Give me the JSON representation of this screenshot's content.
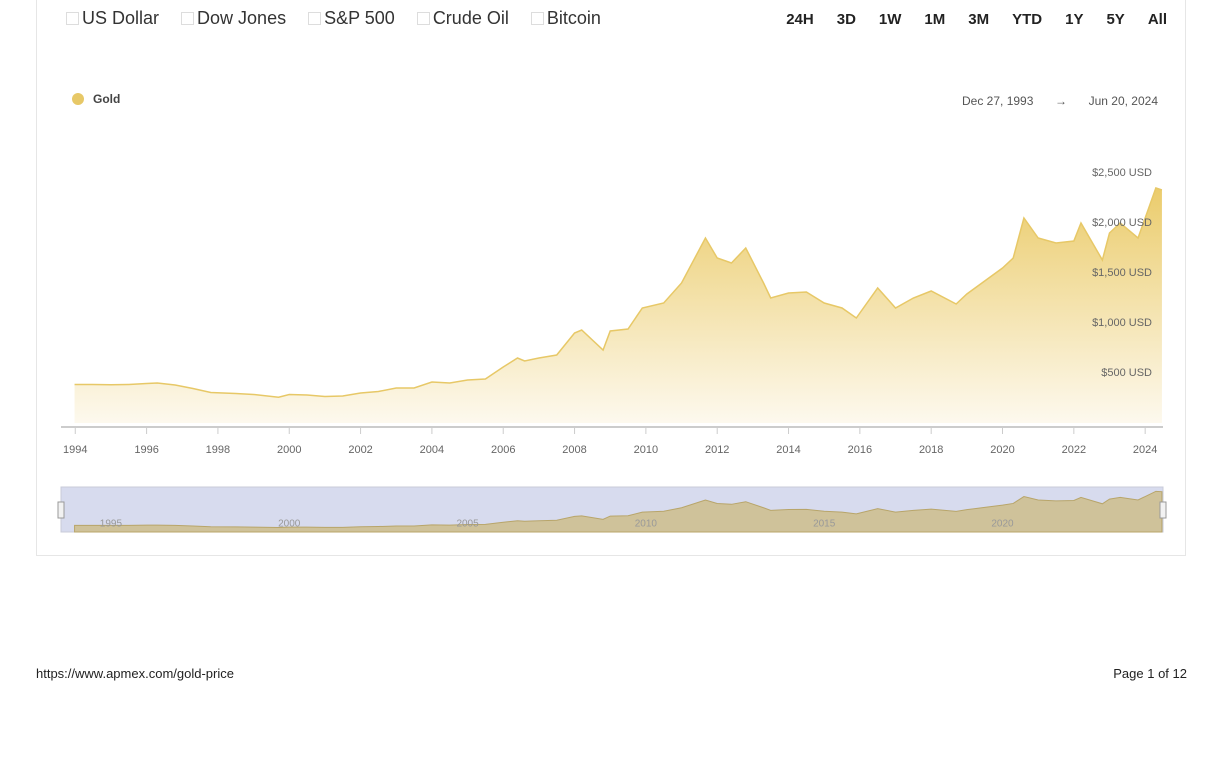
{
  "toolbar": {
    "compare": [
      "US Dollar",
      "Dow Jones",
      "S&P 500",
      "Crude Oil",
      "Bitcoin"
    ],
    "ranges": [
      "24H",
      "3D",
      "1W",
      "1M",
      "3M",
      "YTD",
      "1Y",
      "5Y",
      "All"
    ]
  },
  "date_range": {
    "from": "Dec 27, 1993",
    "separator": "→",
    "to": "Jun 20, 2024"
  },
  "chart_data": {
    "type": "area",
    "x": [
      1993.98,
      1994.5,
      1995,
      1995.5,
      1996,
      1996.3,
      1996.8,
      1997.3,
      1997.8,
      1998.5,
      1999,
      1999.7,
      2000,
      2000.5,
      2001,
      2001.5,
      2002,
      2002.5,
      2003,
      2003.5,
      2004,
      2004.5,
      2005,
      2005.5,
      2006,
      2006.4,
      2006.6,
      2007,
      2007.5,
      2008,
      2008.2,
      2008.8,
      2009,
      2009.5,
      2009.9,
      2010.5,
      2011,
      2011.67,
      2012,
      2012.4,
      2012.8,
      2013.3,
      2013.5,
      2014,
      2014.5,
      2015,
      2015.5,
      2015.9,
      2016.5,
      2017,
      2017.5,
      2018,
      2018.7,
      2019,
      2019.5,
      2020,
      2020.3,
      2020.6,
      2021,
      2021.5,
      2022,
      2022.2,
      2022.8,
      2023,
      2023.3,
      2023.8,
      2024,
      2024.3,
      2024.47
    ],
    "series": [
      {
        "name": "Gold",
        "color": "#e7c867",
        "values": [
          385,
          385,
          383,
          385,
          395,
          400,
          380,
          345,
          305,
          295,
          285,
          258,
          285,
          280,
          265,
          270,
          300,
          315,
          350,
          350,
          410,
          400,
          430,
          440,
          560,
          650,
          620,
          650,
          680,
          900,
          930,
          730,
          920,
          940,
          1150,
          1200,
          1400,
          1850,
          1650,
          1600,
          1750,
          1400,
          1250,
          1300,
          1310,
          1200,
          1150,
          1050,
          1350,
          1150,
          1250,
          1320,
          1190,
          1290,
          1420,
          1550,
          1650,
          2050,
          1850,
          1800,
          1820,
          2000,
          1630,
          1900,
          2000,
          1850,
          2050,
          2350,
          2330
        ]
      }
    ],
    "xlim": [
      1993.6,
      2024.5
    ],
    "xticks": [
      1994,
      1996,
      1998,
      2000,
      2002,
      2004,
      2006,
      2008,
      2010,
      2012,
      2014,
      2016,
      2018,
      2020,
      2022,
      2024
    ],
    "ylim": [
      0,
      2600
    ],
    "yticks": [
      {
        "value": 500,
        "label": "$500 USD"
      },
      {
        "value": 1000,
        "label": "$1,000 USD"
      },
      {
        "value": 1500,
        "label": "$1,500 USD"
      },
      {
        "value": 2000,
        "label": "$2,000 USD"
      },
      {
        "value": 2500,
        "label": "$2,500 USD"
      }
    ],
    "navigator_ticks": [
      1995,
      2000,
      2005,
      2010,
      2015,
      2020
    ]
  },
  "footer": {
    "url": "https://www.apmex.com/gold-price",
    "page": "Page 1 of 12"
  }
}
